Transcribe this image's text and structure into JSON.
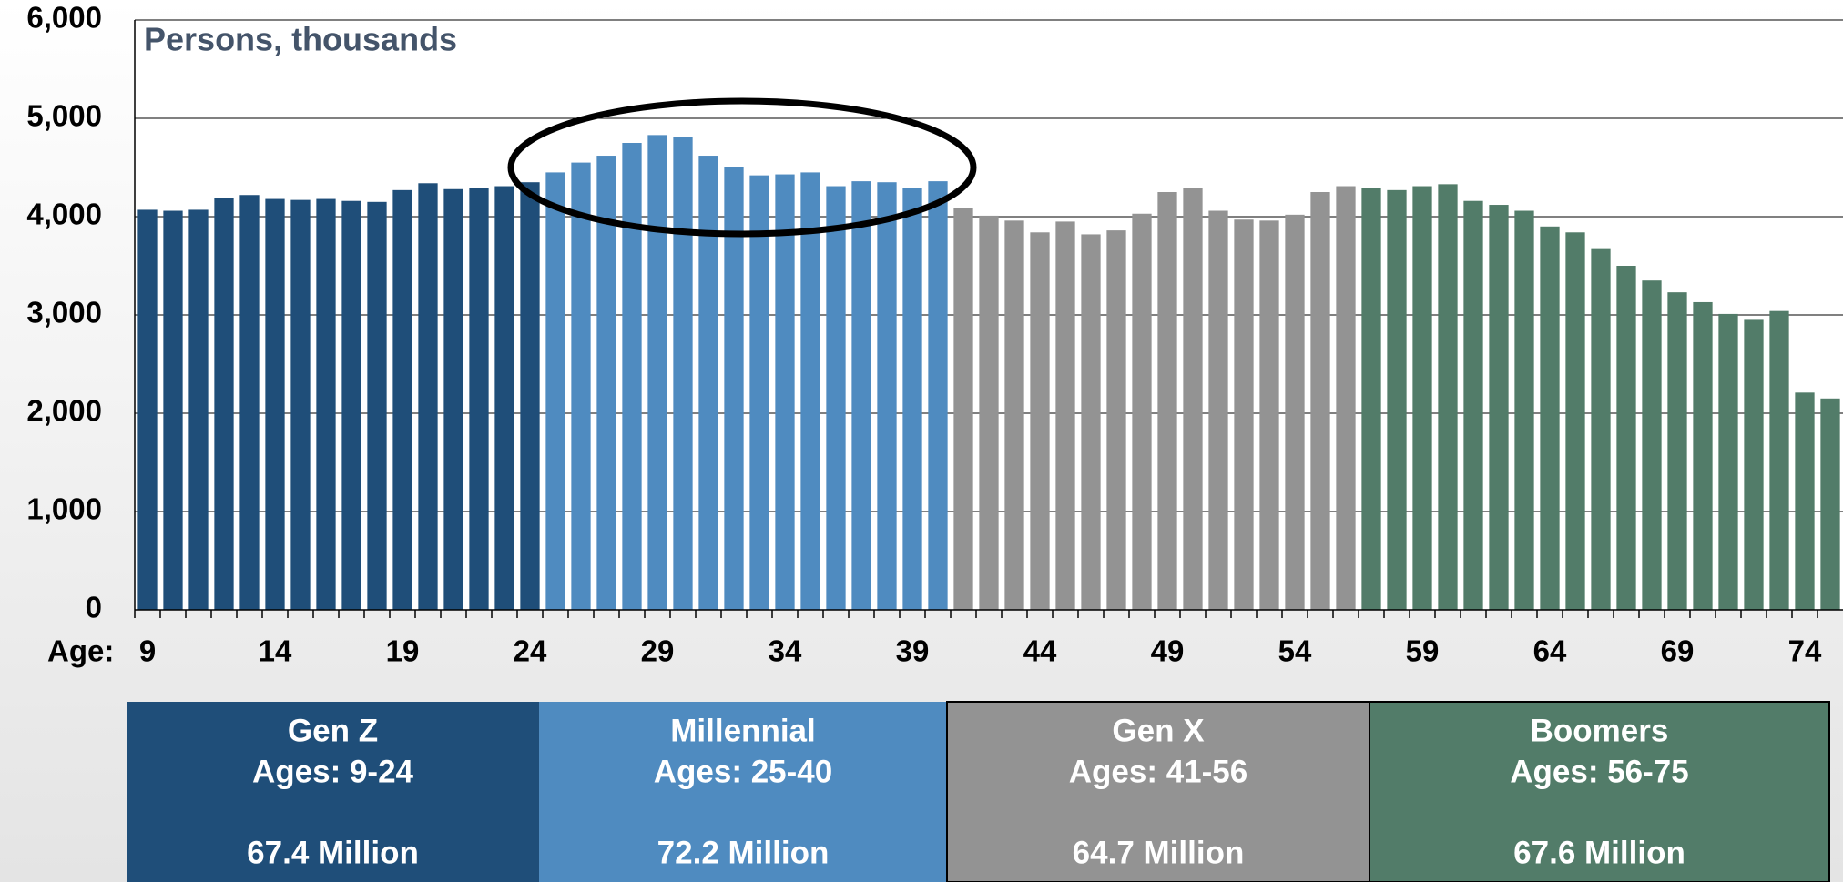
{
  "chart_data": {
    "type": "bar",
    "title": "Persons, thousands",
    "x_label": "Age:",
    "categories": [
      9,
      null,
      null,
      null,
      null,
      14,
      null,
      null,
      null,
      null,
      19,
      null,
      null,
      null,
      null,
      24,
      null,
      null,
      null,
      null,
      29,
      null,
      null,
      null,
      null,
      34,
      null,
      null,
      null,
      null,
      39,
      null,
      null,
      null,
      null,
      44,
      null,
      null,
      null,
      null,
      49,
      null,
      null,
      null,
      null,
      54,
      null,
      null,
      null,
      null,
      59,
      null,
      null,
      null,
      null,
      64,
      null,
      null,
      null,
      null,
      69,
      null,
      null,
      null,
      null,
      74,
      null
    ],
    "series": [
      {
        "name": "Gen Z",
        "ages": "Ages: 9-24",
        "total": "67.4 Million",
        "color": "#1f4e79",
        "values": [
          4070,
          4060,
          4070,
          4190,
          4220,
          4180,
          4170,
          4180,
          4160,
          4150,
          4270,
          4340,
          4280,
          4290,
          4310,
          4350,
          null,
          null,
          null,
          null,
          null,
          null,
          null,
          null,
          null,
          null,
          null,
          null,
          null,
          null,
          null,
          null,
          null,
          null,
          null,
          null,
          null,
          null,
          null,
          null,
          null,
          null,
          null,
          null,
          null,
          null,
          null,
          null,
          null,
          null,
          null,
          null,
          null,
          null,
          null,
          null,
          null,
          null,
          null,
          null,
          null,
          null,
          null,
          null,
          null,
          null,
          null
        ]
      },
      {
        "name": "Millennial",
        "ages": "Ages: 25-40",
        "total": "72.2 Million",
        "color": "#4f8bc0",
        "values": [
          null,
          null,
          null,
          null,
          null,
          null,
          null,
          null,
          null,
          null,
          null,
          null,
          null,
          null,
          null,
          null,
          4450,
          4550,
          4620,
          4750,
          4830,
          4810,
          4620,
          4500,
          4420,
          4430,
          4450,
          4310,
          4360,
          4350,
          4290,
          4360,
          null,
          null,
          null,
          null,
          null,
          null,
          null,
          null,
          null,
          null,
          null,
          null,
          null,
          null,
          null,
          null,
          null,
          null,
          null,
          null,
          null,
          null,
          null,
          null,
          null,
          null,
          null,
          null,
          null,
          null,
          null,
          null,
          null,
          null,
          null
        ]
      },
      {
        "name": "Gen X",
        "ages": "Ages: 41-56",
        "total": "64.7 Million",
        "color": "#939393",
        "values": [
          null,
          null,
          null,
          null,
          null,
          null,
          null,
          null,
          null,
          null,
          null,
          null,
          null,
          null,
          null,
          null,
          null,
          null,
          null,
          null,
          null,
          null,
          null,
          null,
          null,
          null,
          null,
          null,
          null,
          null,
          null,
          null,
          4090,
          4010,
          3960,
          3840,
          3950,
          3820,
          3860,
          4030,
          4250,
          4290,
          4060,
          3970,
          3960,
          4020,
          4250,
          4310,
          null,
          null,
          null,
          null,
          null,
          null,
          null,
          null,
          null,
          null,
          null,
          null,
          null,
          null,
          null,
          null,
          null,
          null,
          null
        ]
      },
      {
        "name": "Boomers",
        "ages": "Ages: 56-75",
        "total": "67.6 Million",
        "color": "#527c69",
        "values": [
          null,
          null,
          null,
          null,
          null,
          null,
          null,
          null,
          null,
          null,
          null,
          null,
          null,
          null,
          null,
          null,
          null,
          null,
          null,
          null,
          null,
          null,
          null,
          null,
          null,
          null,
          null,
          null,
          null,
          null,
          null,
          null,
          null,
          null,
          null,
          null,
          null,
          null,
          null,
          null,
          null,
          null,
          null,
          null,
          null,
          null,
          null,
          null,
          4290,
          4270,
          4310,
          4330,
          4160,
          4120,
          4060,
          3900,
          3840,
          3670,
          3500,
          3350,
          3230,
          3130,
          3010,
          2950,
          3040,
          2210,
          2150
        ]
      }
    ],
    "ylim": [
      0,
      6000
    ],
    "yticks": [
      0,
      {
        "value": 1000,
        "label": "1,000"
      },
      {
        "value": 2000,
        "label": "2,000"
      },
      {
        "value": 3000,
        "label": "3,000"
      },
      {
        "value": 4000,
        "label": "4,000"
      },
      {
        "value": 5000,
        "label": "5,000"
      },
      {
        "value": 6000,
        "label": "6,000"
      }
    ],
    "grid": true
  }
}
